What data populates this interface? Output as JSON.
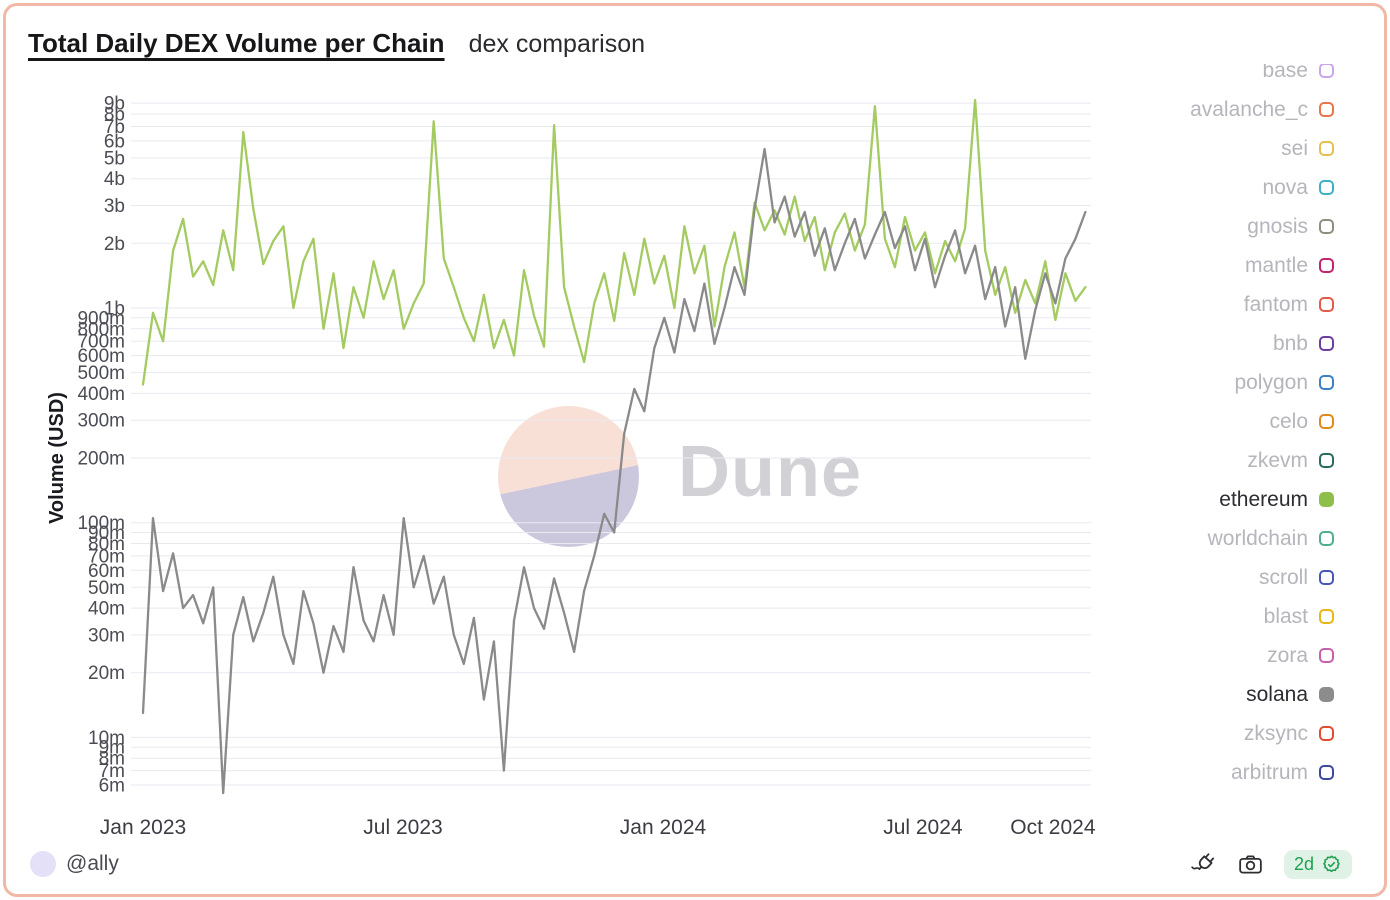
{
  "header": {
    "title": "Total Daily DEX Volume per Chain",
    "subtitle": "dex comparison"
  },
  "watermark": {
    "text": "Dune"
  },
  "footer": {
    "handle": "@ally",
    "age_badge": "2d",
    "icons": [
      "plug-icon",
      "camera-icon",
      "verified-seal-icon"
    ]
  },
  "colors": {
    "card_border": "#f0b8a5",
    "gridline": "#e9e9f1",
    "watermark_pink": "#f8ded4",
    "watermark_lavender": "#c8c5dc",
    "badge_green": "#1fa152",
    "badge_bg": "#dff2e5",
    "ethereum_line": "#a3cb61",
    "solana_line": "#8a8a8a"
  },
  "legend": {
    "items": [
      {
        "label": "base",
        "color": "#c9a5ec",
        "filled": false,
        "selected": false
      },
      {
        "label": "avalanche_c",
        "color": "#e8754d",
        "filled": false,
        "selected": false
      },
      {
        "label": "sei",
        "color": "#e5c04e",
        "filled": false,
        "selected": false
      },
      {
        "label": "nova",
        "color": "#3fb0c4",
        "filled": false,
        "selected": false
      },
      {
        "label": "gnosis",
        "color": "#8a9180",
        "filled": false,
        "selected": false
      },
      {
        "label": "mantle",
        "color": "#c2256e",
        "filled": false,
        "selected": false
      },
      {
        "label": "fantom",
        "color": "#e25a4a",
        "filled": false,
        "selected": false
      },
      {
        "label": "bnb",
        "color": "#6b3fa0",
        "filled": false,
        "selected": false
      },
      {
        "label": "polygon",
        "color": "#3b82c4",
        "filled": false,
        "selected": false
      },
      {
        "label": "celo",
        "color": "#e08a1c",
        "filled": false,
        "selected": false
      },
      {
        "label": "zkevm",
        "color": "#2a6b5f",
        "filled": false,
        "selected": false
      },
      {
        "label": "ethereum",
        "color": "#8fbf4b",
        "filled": true,
        "selected": true
      },
      {
        "label": "worldchain",
        "color": "#4fae92",
        "filled": false,
        "selected": false
      },
      {
        "label": "scroll",
        "color": "#4956b8",
        "filled": false,
        "selected": false
      },
      {
        "label": "blast",
        "color": "#eab516",
        "filled": false,
        "selected": false
      },
      {
        "label": "zora",
        "color": "#c75fae",
        "filled": false,
        "selected": false
      },
      {
        "label": "solana",
        "color": "#8c8c8c",
        "filled": true,
        "selected": true
      },
      {
        "label": "zksync",
        "color": "#e14d33",
        "filled": false,
        "selected": false
      },
      {
        "label": "arbitrum",
        "color": "#3c499e",
        "filled": false,
        "selected": false
      }
    ]
  },
  "chart_data": {
    "type": "line",
    "title": "Total Daily DEX Volume per Chain",
    "subtitle": "dex comparison",
    "xlabel": "",
    "ylabel": "Volume (USD)",
    "yscale": "log",
    "grid": "horizontal",
    "legend_position": "right",
    "x_unit": "months since Jan 2023",
    "x_range": [
      0,
      21.75
    ],
    "xticks": [
      {
        "month": 0,
        "label": "Jan 2023"
      },
      {
        "month": 6,
        "label": "Jul 2023"
      },
      {
        "month": 12,
        "label": "Jan 2024"
      },
      {
        "month": 18,
        "label": "Jul 2024"
      },
      {
        "month": 21,
        "label": "Oct 2024"
      }
    ],
    "yticks": [
      {
        "value": 9000000000,
        "label": "9b"
      },
      {
        "value": 8000000000,
        "label": "8b"
      },
      {
        "value": 7000000000,
        "label": "7b"
      },
      {
        "value": 6000000000,
        "label": "6b"
      },
      {
        "value": 5000000000,
        "label": "5b"
      },
      {
        "value": 4000000000,
        "label": "4b"
      },
      {
        "value": 3000000000,
        "label": "3b"
      },
      {
        "value": 2000000000,
        "label": "2b"
      },
      {
        "value": 1000000000,
        "label": "1b"
      },
      {
        "value": 900000000,
        "label": "900m"
      },
      {
        "value": 800000000,
        "label": "800m"
      },
      {
        "value": 700000000,
        "label": "700m"
      },
      {
        "value": 600000000,
        "label": "600m"
      },
      {
        "value": 500000000,
        "label": "500m"
      },
      {
        "value": 400000000,
        "label": "400m"
      },
      {
        "value": 300000000,
        "label": "300m"
      },
      {
        "value": 200000000,
        "label": "200m"
      },
      {
        "value": 100000000,
        "label": "100m"
      },
      {
        "value": 90000000,
        "label": "90m"
      },
      {
        "value": 80000000,
        "label": "80m"
      },
      {
        "value": 70000000,
        "label": "70m"
      },
      {
        "value": 60000000,
        "label": "60m"
      },
      {
        "value": 50000000,
        "label": "50m"
      },
      {
        "value": 40000000,
        "label": "40m"
      },
      {
        "value": 30000000,
        "label": "30m"
      },
      {
        "value": 20000000,
        "label": "20m"
      },
      {
        "value": 10000000,
        "label": "10m"
      },
      {
        "value": 9000000,
        "label": "9m"
      },
      {
        "value": 8000000,
        "label": "8m"
      },
      {
        "value": 7000000,
        "label": "7m"
      },
      {
        "value": 6000000,
        "label": "6m"
      }
    ],
    "series": [
      {
        "name": "ethereum",
        "color": "#a3cb61",
        "unit": "million USD per day",
        "values_musd": [
          440,
          950,
          700,
          1850,
          2600,
          1400,
          1650,
          1280,
          2300,
          1500,
          6600,
          2900,
          1600,
          2050,
          2400,
          1000,
          1650,
          2100,
          800,
          1450,
          650,
          1250,
          900,
          1650,
          1100,
          1500,
          800,
          1050,
          1300,
          7400,
          1700,
          1250,
          900,
          700,
          1150,
          650,
          880,
          600,
          1500,
          920,
          660,
          7100,
          1250,
          820,
          560,
          1050,
          1450,
          870,
          1800,
          1150,
          2100,
          1300,
          1750,
          1000,
          2400,
          1450,
          1950,
          820,
          1550,
          2250,
          1250,
          3100,
          2300,
          2850,
          2200,
          3300,
          2050,
          2650,
          1500,
          2250,
          2750,
          1850,
          2450,
          8700,
          2100,
          1550,
          2650,
          1850,
          2250,
          1450,
          2050,
          1650,
          2350,
          9300,
          1850,
          1150,
          1550,
          950,
          1350,
          1050,
          1650,
          880,
          1450,
          1080,
          1250
        ]
      },
      {
        "name": "solana",
        "color": "#8a8a8a",
        "unit": "million USD per day",
        "values_musd": [
          13,
          105,
          48,
          72,
          40,
          46,
          34,
          50,
          5.5,
          30,
          45,
          28,
          38,
          56,
          30,
          22,
          48,
          34,
          20,
          33,
          25,
          62,
          35,
          28,
          46,
          30,
          105,
          50,
          70,
          42,
          56,
          30,
          22,
          36,
          15,
          28,
          7,
          35,
          62,
          40,
          32,
          55,
          38,
          25,
          48,
          70,
          110,
          90,
          260,
          420,
          330,
          650,
          900,
          620,
          1100,
          780,
          1300,
          680,
          1000,
          1550,
          1150,
          2900,
          5500,
          2500,
          3300,
          2150,
          2800,
          1750,
          2350,
          1500,
          2000,
          2600,
          1700,
          2200,
          2800,
          1900,
          2400,
          1500,
          2100,
          1250,
          1750,
          2300,
          1450,
          1950,
          1100,
          1550,
          820,
          1250,
          580,
          980,
          1450,
          1050,
          1700,
          2100,
          2800
        ]
      }
    ]
  }
}
